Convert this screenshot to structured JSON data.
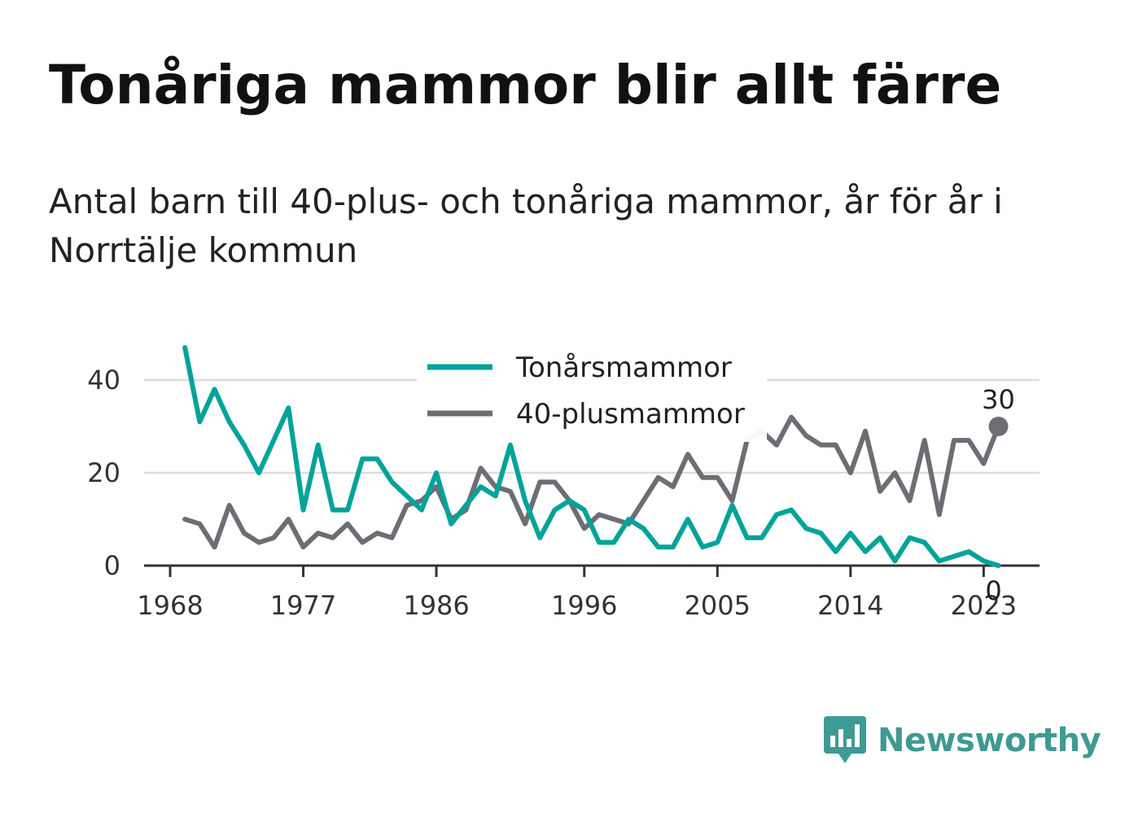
{
  "title": "Tonåriga mammor blir allt färre",
  "subtitle": "Antal barn till 40-plus- och tonåriga mammor, år för år i Norrtälje kommun",
  "brand": {
    "name": "Newsworthy",
    "color": "#3e9a93",
    "logo_icon": "bar-chart-speech-bubble-icon"
  },
  "chart_data": {
    "type": "line",
    "x": [
      1969,
      1970,
      1971,
      1972,
      1973,
      1974,
      1975,
      1976,
      1977,
      1978,
      1979,
      1980,
      1981,
      1982,
      1983,
      1984,
      1985,
      1986,
      1987,
      1988,
      1989,
      1990,
      1991,
      1992,
      1993,
      1994,
      1995,
      1996,
      1997,
      1998,
      1999,
      2000,
      2001,
      2002,
      2003,
      2004,
      2005,
      2006,
      2007,
      2008,
      2009,
      2010,
      2011,
      2012,
      2013,
      2014,
      2015,
      2016,
      2017,
      2018,
      2019,
      2020,
      2021,
      2022,
      2023,
      2024
    ],
    "x_ticks": [
      "1968",
      "1977",
      "1986",
      "1996",
      "2005",
      "2014",
      "2023"
    ],
    "y_ticks": [
      "0",
      "20",
      "40"
    ],
    "ylim": [
      0,
      48
    ],
    "grid": true,
    "legend_position": "top-center",
    "series": [
      {
        "name": "Tonårsmammor",
        "color": "#00a39a",
        "values": [
          47,
          31,
          38,
          31,
          26,
          20,
          27,
          34,
          12,
          26,
          12,
          12,
          23,
          23,
          18,
          15,
          12,
          20,
          9,
          13,
          17,
          15,
          26,
          14,
          6,
          12,
          14,
          12,
          5,
          5,
          10,
          8,
          4,
          4,
          10,
          4,
          5,
          13,
          6,
          6,
          11,
          12,
          8,
          7,
          3,
          7,
          3,
          6,
          1,
          6,
          5,
          1,
          2,
          3,
          1,
          0
        ],
        "end_label": "0"
      },
      {
        "name": "40-plusmammor",
        "color": "#6e6d74",
        "values": [
          10,
          9,
          4,
          13,
          7,
          5,
          6,
          10,
          4,
          7,
          6,
          9,
          5,
          7,
          6,
          13,
          14,
          17,
          10,
          12,
          21,
          17,
          16,
          9,
          18,
          18,
          14,
          8,
          11,
          10,
          9,
          14,
          19,
          17,
          24,
          19,
          19,
          14,
          27,
          29,
          26,
          32,
          28,
          26,
          26,
          20,
          29,
          16,
          20,
          14,
          27,
          11,
          27,
          27,
          22,
          30
        ],
        "end_label": "30"
      }
    ]
  }
}
